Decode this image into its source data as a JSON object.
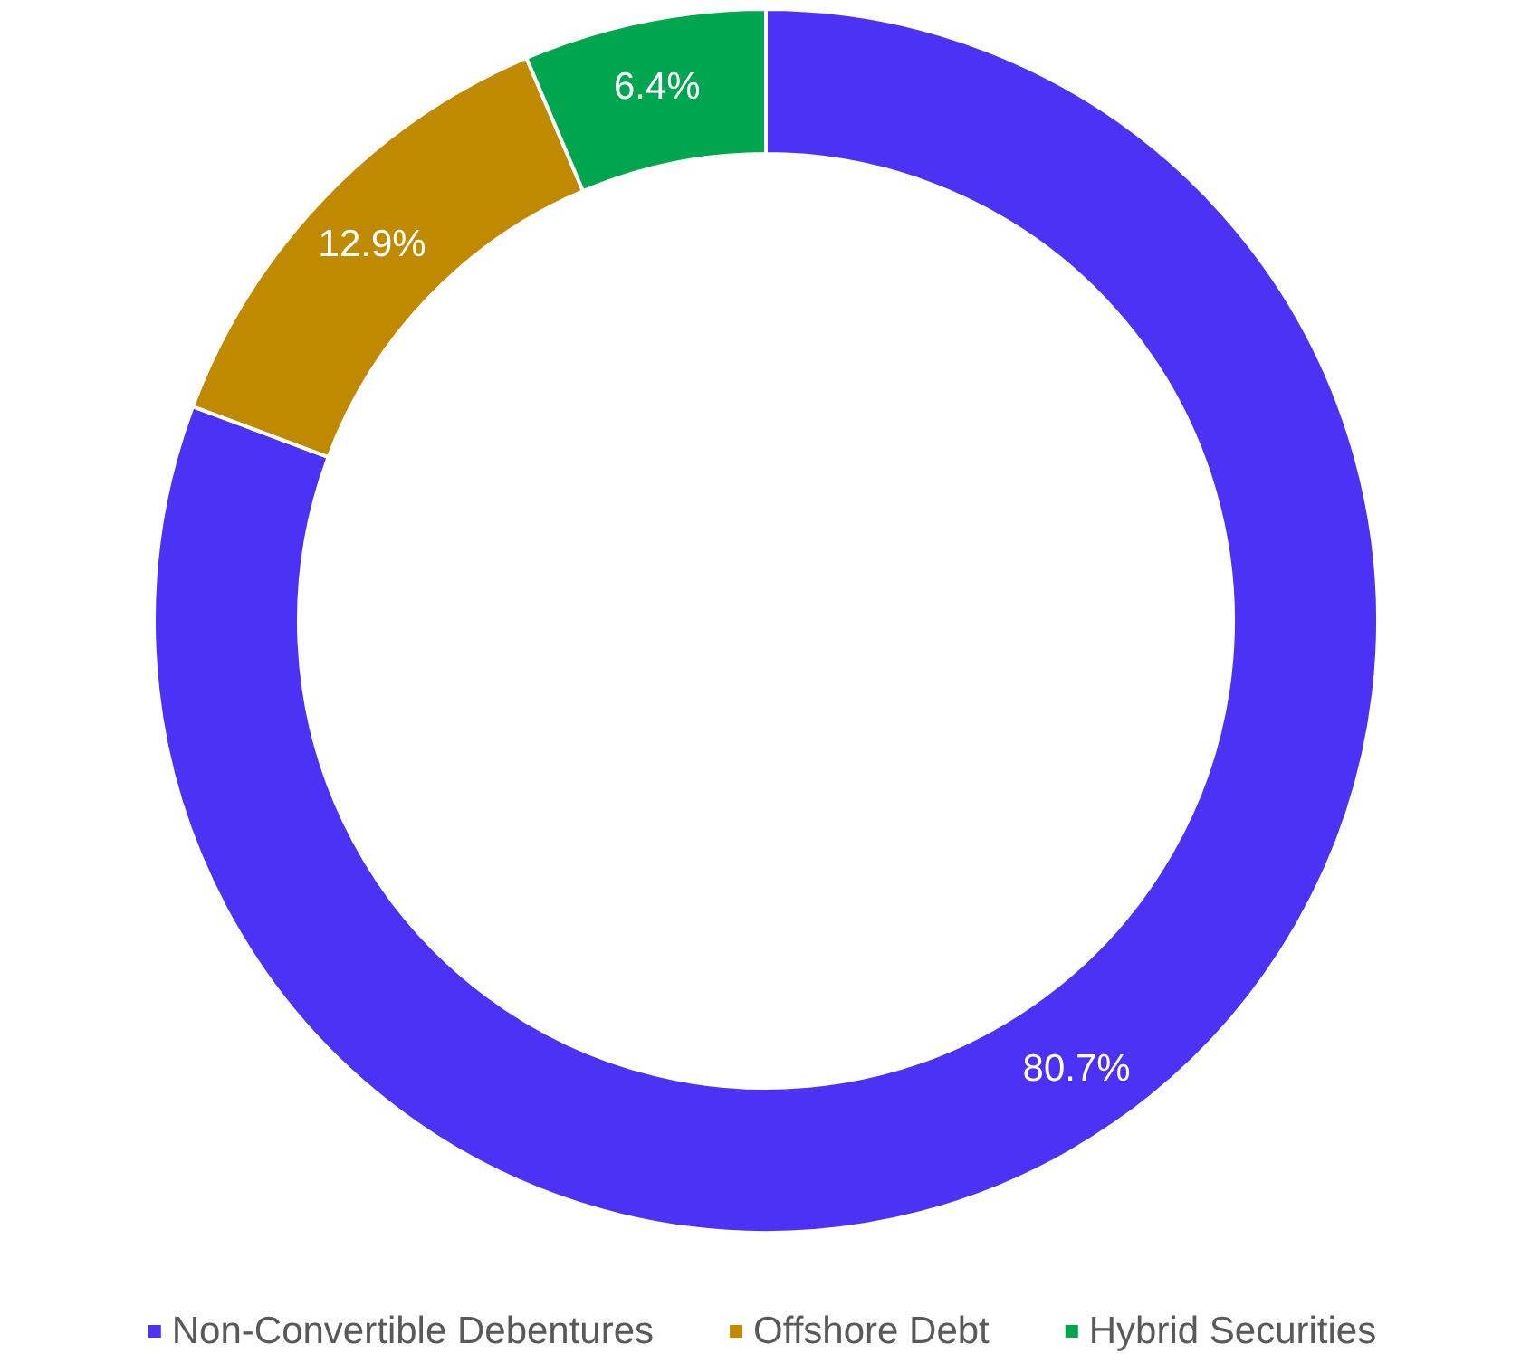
{
  "chart_data": {
    "type": "donut",
    "categories": [
      "Non-Convertible Debentures",
      "Offshore Debt",
      "Hybrid Securities"
    ],
    "values": [
      80.7,
      12.9,
      6.4
    ],
    "value_labels": [
      "80.7%",
      "12.9%",
      "6.4%"
    ],
    "colors": [
      "#4b32f5",
      "#bf8a00",
      "#00a550"
    ],
    "legend": "bottom"
  }
}
